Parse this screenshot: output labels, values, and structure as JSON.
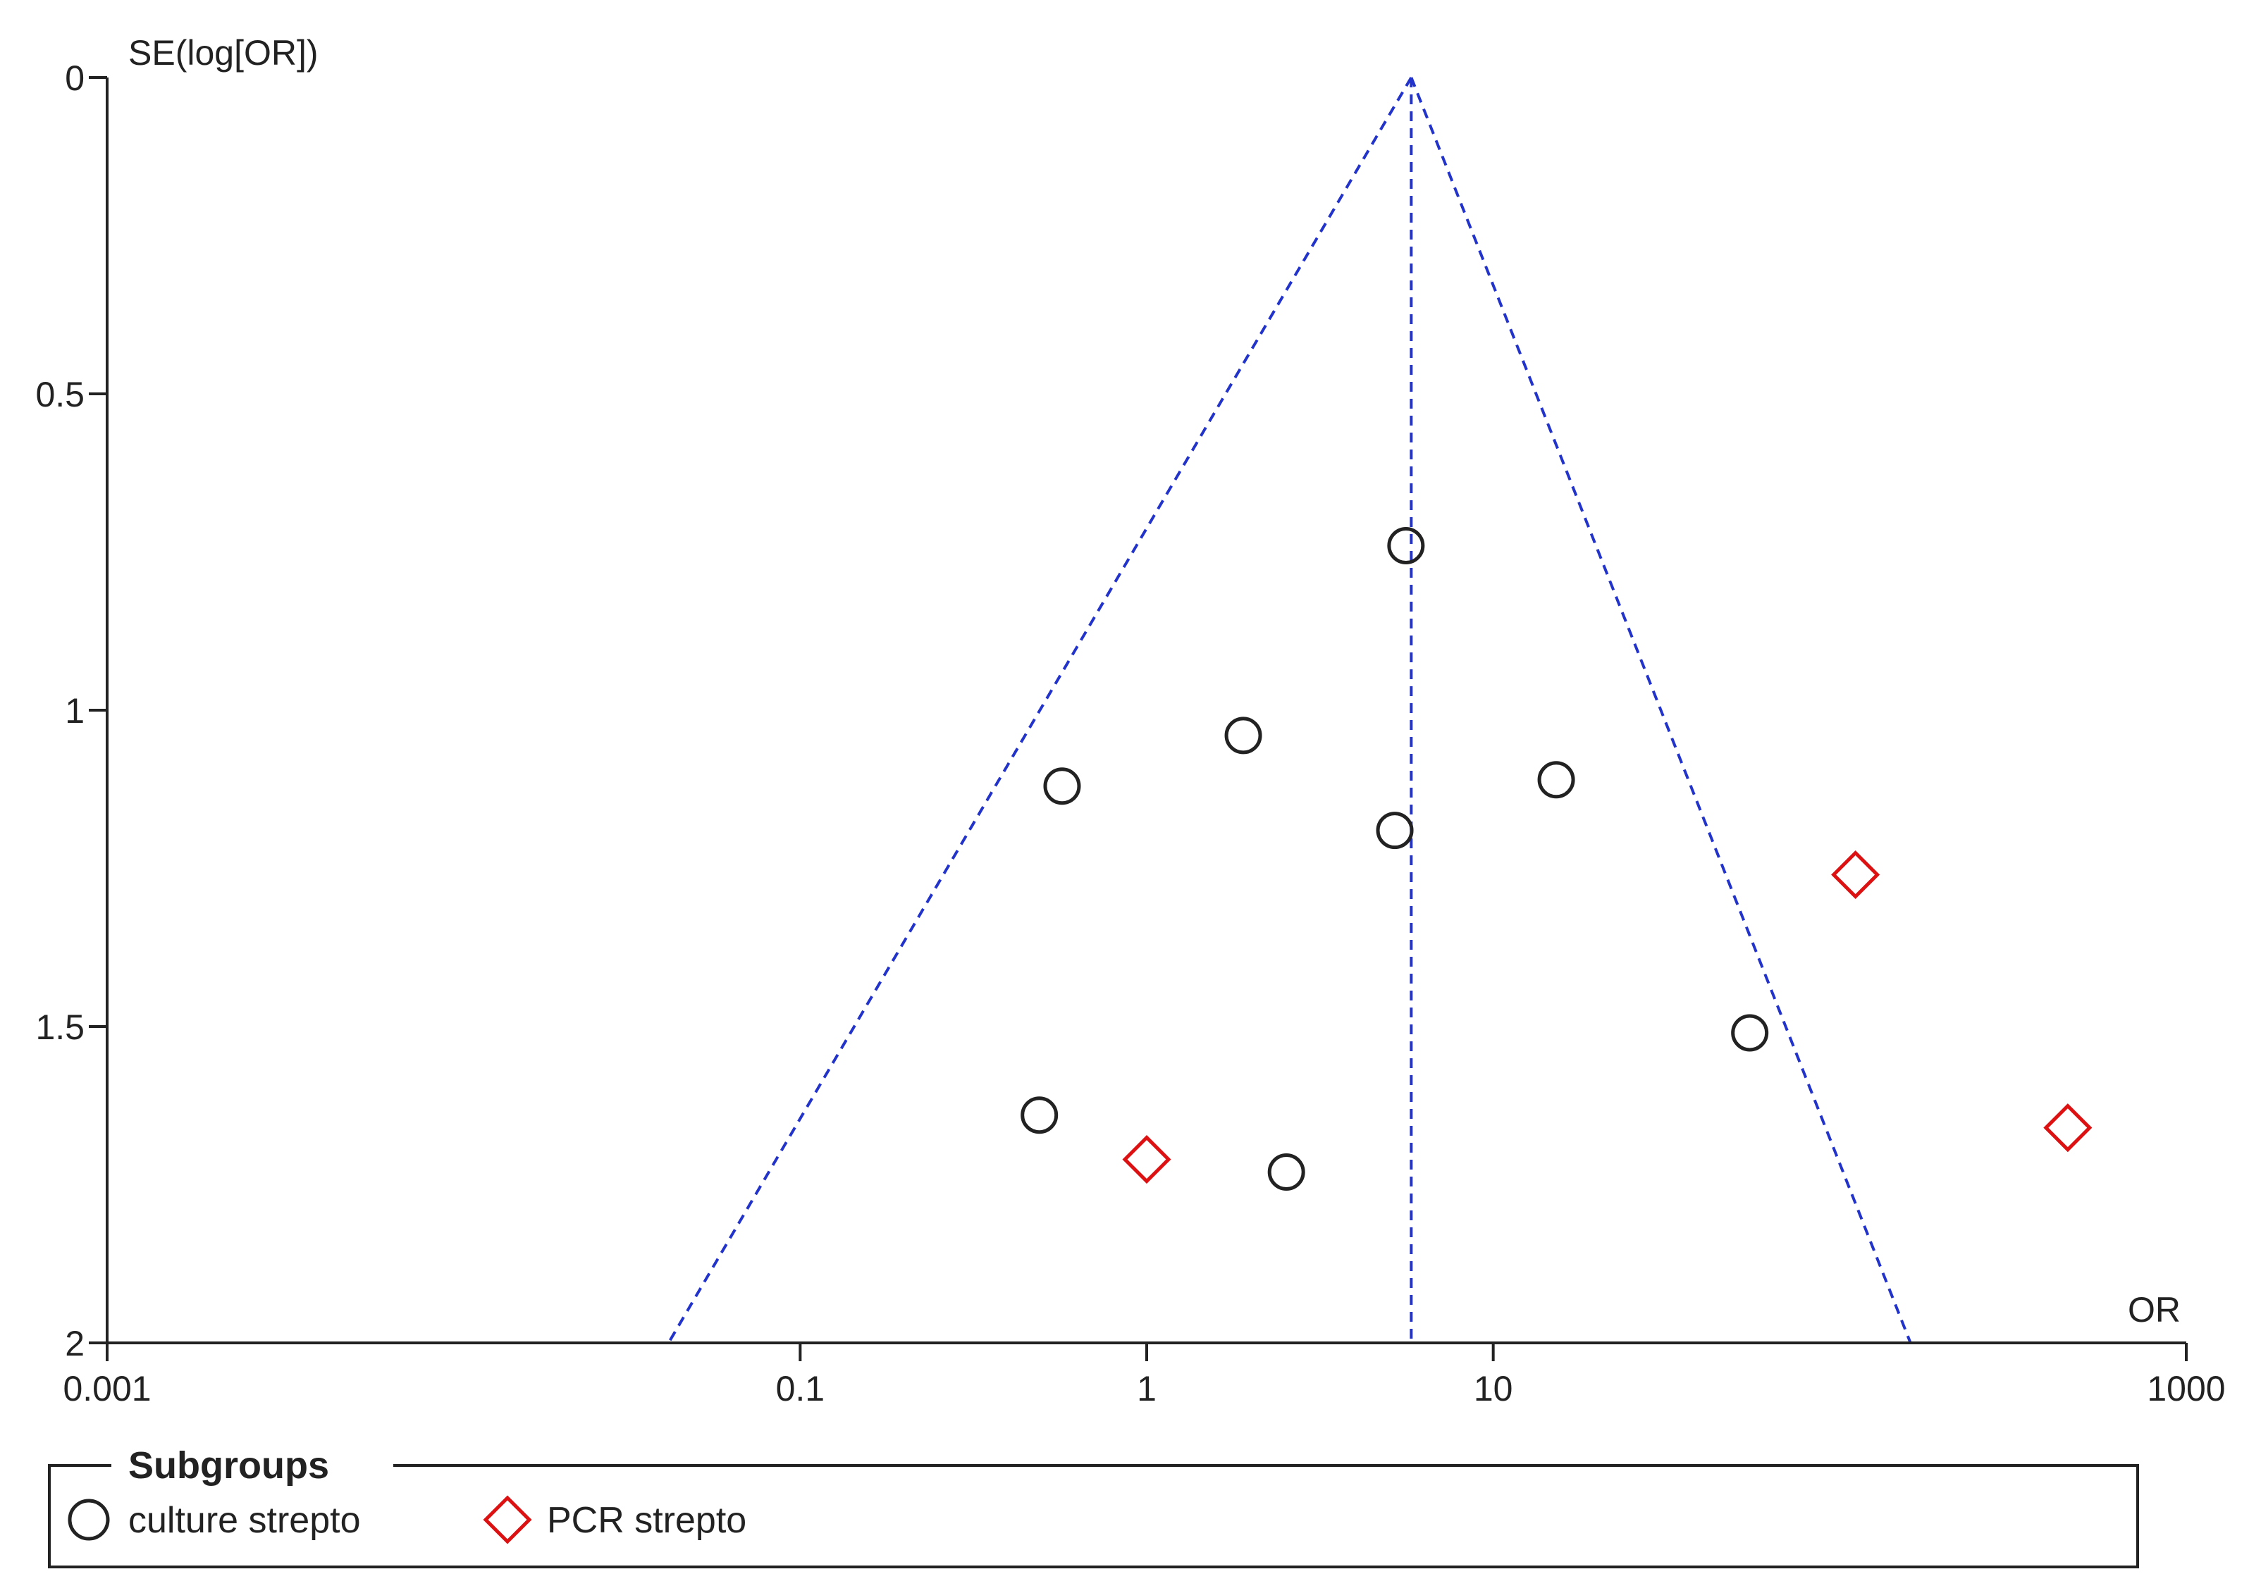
{
  "chart_data": {
    "type": "scatter",
    "subtype": "funnel-plot",
    "title": "",
    "xlabel": "OR",
    "ylabel": "SE(log[OR])",
    "x_scale": "log",
    "xlim": [
      0.001,
      1000
    ],
    "ylim": [
      0,
      2
    ],
    "y_inverted": true,
    "grid": false,
    "x_ticks": [
      {
        "value": 0.001,
        "label": "0.001"
      },
      {
        "value": 0.1,
        "label": "0.1"
      },
      {
        "value": 1,
        "label": "1"
      },
      {
        "value": 10,
        "label": "10"
      },
      {
        "value": 1000,
        "label": "1000"
      }
    ],
    "y_ticks": [
      {
        "value": 0,
        "label": "0"
      },
      {
        "value": 0.5,
        "label": "0.5"
      },
      {
        "value": 1,
        "label": "1"
      },
      {
        "value": 1.5,
        "label": "1.5"
      },
      {
        "value": 2,
        "label": "2"
      }
    ],
    "pooled_or": 5.8,
    "funnel": {
      "apex": {
        "x": 5.8,
        "y": 0
      },
      "left_base": {
        "x": 0.0417,
        "y": 2
      },
      "right_base": {
        "x": 160,
        "y": 2
      },
      "color": "#2233cc",
      "style": "dashed"
    },
    "series": [
      {
        "name": "culture strepto",
        "marker": "circle",
        "color": "#222222",
        "points": [
          {
            "x": 5.6,
            "y": 0.74
          },
          {
            "x": 1.9,
            "y": 1.04
          },
          {
            "x": 0.57,
            "y": 1.12
          },
          {
            "x": 5.2,
            "y": 1.19
          },
          {
            "x": 15.2,
            "y": 1.11
          },
          {
            "x": 55,
            "y": 1.51
          },
          {
            "x": 0.49,
            "y": 1.64
          },
          {
            "x": 2.53,
            "y": 1.73
          }
        ]
      },
      {
        "name": "PCR strepto",
        "marker": "diamond",
        "color": "#dd1111",
        "points": [
          {
            "x": 111,
            "y": 1.26
          },
          {
            "x": 1.0,
            "y": 1.71
          },
          {
            "x": 455,
            "y": 1.66
          }
        ]
      }
    ],
    "legend": {
      "title": "Subgroups",
      "position": "bottom",
      "entries": [
        {
          "label": "culture strepto",
          "marker": "circle",
          "color": "#222222"
        },
        {
          "label": "PCR strepto",
          "marker": "diamond",
          "color": "#dd1111"
        }
      ]
    }
  }
}
